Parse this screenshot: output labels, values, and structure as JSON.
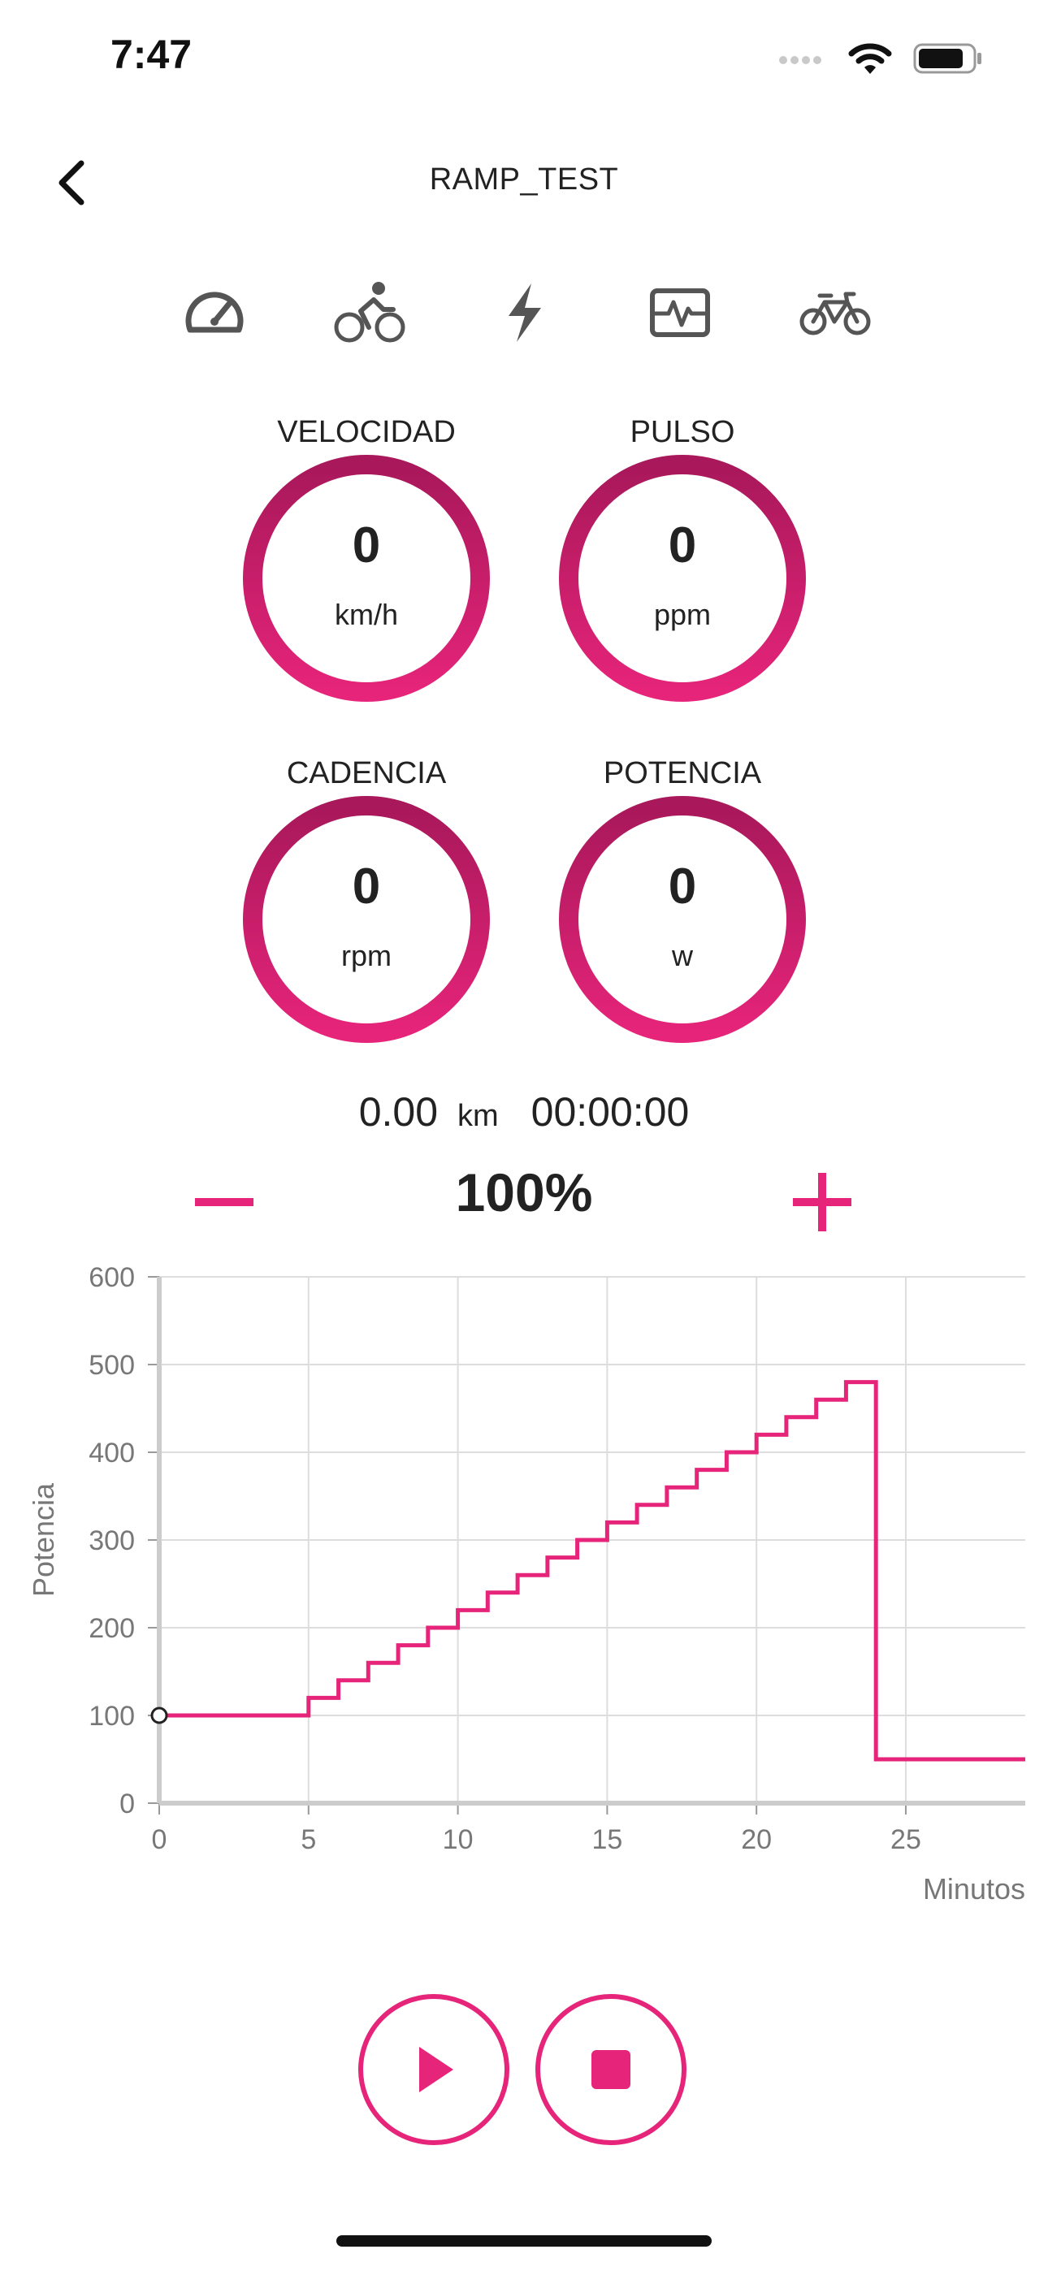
{
  "status_bar": {
    "time": "7:47",
    "icons": [
      "signal-icon",
      "wifi-icon",
      "battery-icon"
    ]
  },
  "nav": {
    "title": "RAMP_TEST",
    "back_icon": "chevron-left-icon"
  },
  "mode_tabs": [
    {
      "icon": "speedometer-icon"
    },
    {
      "icon": "cyclist-icon"
    },
    {
      "icon": "lightning-icon"
    },
    {
      "icon": "heart-rate-monitor-icon"
    },
    {
      "icon": "bicycle-icon"
    }
  ],
  "gauges": [
    {
      "label": "VELOCIDAD",
      "value": "0",
      "unit": "km/h"
    },
    {
      "label": "PULSO",
      "value": "0",
      "unit": "ppm"
    },
    {
      "label": "CADENCIA",
      "value": "0",
      "unit": "rpm"
    },
    {
      "label": "POTENCIA",
      "value": "0",
      "unit": "w"
    }
  ],
  "summary": {
    "distance": "0.00",
    "distance_unit": "km",
    "elapsed": "00:00:00"
  },
  "intensity": {
    "value": "100%"
  },
  "colors": {
    "accent": "#E6247A",
    "accent_dark": "#A8185A"
  },
  "chart_data": {
    "type": "line",
    "title": "",
    "xlabel": "Minutos",
    "ylabel": "Potencia",
    "xlim": [
      0,
      29
    ],
    "ylim": [
      0,
      600
    ],
    "x_ticks": [
      "0",
      "5",
      "10",
      "15",
      "20",
      "25"
    ],
    "y_ticks": [
      "0",
      "100",
      "200",
      "300",
      "400",
      "500",
      "600"
    ],
    "grid": true,
    "series": [
      {
        "step": true,
        "points": [
          [
            0,
            100
          ],
          [
            5,
            100
          ],
          [
            5,
            120
          ],
          [
            6,
            120
          ],
          [
            6,
            140
          ],
          [
            7,
            140
          ],
          [
            7,
            160
          ],
          [
            8,
            160
          ],
          [
            8,
            180
          ],
          [
            9,
            180
          ],
          [
            9,
            200
          ],
          [
            10,
            200
          ],
          [
            10,
            220
          ],
          [
            11,
            220
          ],
          [
            11,
            240
          ],
          [
            12,
            240
          ],
          [
            12,
            260
          ],
          [
            13,
            260
          ],
          [
            13,
            280
          ],
          [
            14,
            280
          ],
          [
            14,
            300
          ],
          [
            15,
            300
          ],
          [
            15,
            320
          ],
          [
            16,
            320
          ],
          [
            16,
            340
          ],
          [
            17,
            340
          ],
          [
            17,
            360
          ],
          [
            18,
            360
          ],
          [
            18,
            380
          ],
          [
            19,
            380
          ],
          [
            19,
            400
          ],
          [
            20,
            400
          ],
          [
            20,
            420
          ],
          [
            21,
            420
          ],
          [
            21,
            440
          ],
          [
            22,
            440
          ],
          [
            22,
            460
          ],
          [
            23,
            460
          ],
          [
            23,
            480
          ],
          [
            24,
            480
          ],
          [
            24,
            50
          ],
          [
            29,
            50
          ]
        ]
      }
    ],
    "current_marker": [
      0,
      100
    ]
  }
}
